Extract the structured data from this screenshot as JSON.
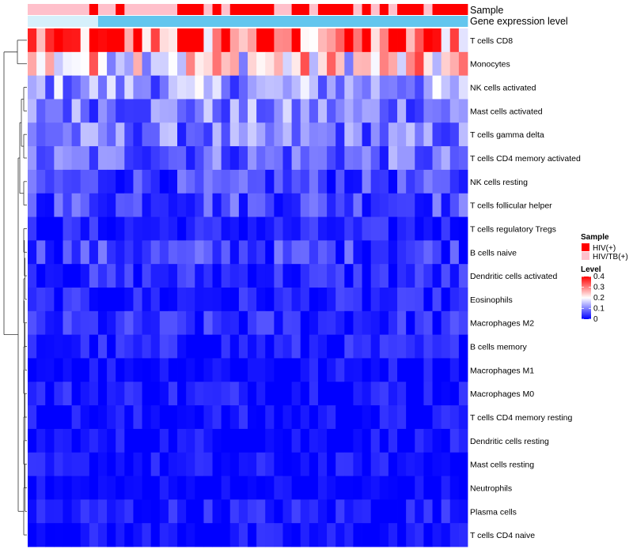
{
  "chart_data": {
    "type": "heatmap",
    "title": "",
    "annotation_labels": [
      "Sample",
      "Gene expression level"
    ],
    "rows": [
      "T cells CD8",
      "Monocytes",
      "NK cells activated",
      "Mast cells activated",
      "T cells gamma delta",
      "T cells CD4 memory activated",
      "NK cells resting",
      "T cells follicular helper",
      "T cells regulatory  Tregs",
      "B cells naive",
      "Dendritic cells activated",
      "Eosinophils",
      "Macrophages M2",
      "B cells memory",
      "Macrophages M1",
      "Macrophages M0",
      "T cells CD4 memory resting",
      "Dendritic cells resting",
      "Mast cells resting",
      "Neutrophils",
      "Plasma cells",
      "T cells CD4 naive"
    ],
    "n_columns": 50,
    "sample_groups": [
      "HIV/TB(+)",
      "HIV/TB(+)",
      "HIV/TB(+)",
      "HIV/TB(+)",
      "HIV/TB(+)",
      "HIV/TB(+)",
      "HIV/TB(+)",
      "HIV(+)",
      "HIV/TB(+)",
      "HIV/TB(+)",
      "HIV(+)",
      "HIV/TB(+)",
      "HIV/TB(+)",
      "HIV/TB(+)",
      "HIV/TB(+)",
      "HIV/TB(+)",
      "HIV/TB(+)",
      "HIV(+)",
      "HIV(+)",
      "HIV(+)",
      "HIV/TB(+)",
      "HIV(+)",
      "HIV/TB(+)",
      "HIV(+)",
      "HIV(+)",
      "HIV(+)",
      "HIV(+)",
      "HIV(+)",
      "HIV/TB(+)",
      "HIV/TB(+)",
      "HIV(+)",
      "HIV(+)",
      "HIV/TB(+)",
      "HIV(+)",
      "HIV(+)",
      "HIV(+)",
      "HIV(+)",
      "HIV/TB(+)",
      "HIV(+)",
      "HIV/TB(+)",
      "HIV(+)",
      "HIV/TB(+)",
      "HIV(+)",
      "HIV(+)",
      "HIV(+)",
      "HIV/TB(+)",
      "HIV(+)",
      "HIV(+)",
      "HIV(+)",
      "HIV(+)"
    ],
    "row_mean_levels": [
      0.32,
      0.22,
      0.12,
      0.1,
      0.09,
      0.08,
      0.05,
      0.06,
      0.02,
      0.05,
      0.03,
      0.02,
      0.03,
      0.02,
      0.01,
      0.02,
      0.01,
      0.01,
      0.01,
      0.0,
      0.02,
      0.01
    ],
    "level_range": [
      0,
      0.4
    ],
    "color_scale": {
      "low": "#0000ff",
      "mid": "#ffffff",
      "high": "#ff0000",
      "mid_value": 0.2
    },
    "dendrogram": "rows, left side"
  },
  "legend": {
    "sample_title": "Sample",
    "sample_items": [
      {
        "label": "HIV(+)",
        "color": "#ff0000"
      },
      {
        "label": "HIV/TB(+)",
        "color": "#ffc0cb"
      }
    ],
    "level_title": "Level",
    "level_ticks": [
      "0.4",
      "0.3",
      "0.2",
      "0.1",
      "0"
    ]
  },
  "colors": {
    "gene_bar": "#62c6ee",
    "gene_bar_light": "#d6f0fb"
  }
}
